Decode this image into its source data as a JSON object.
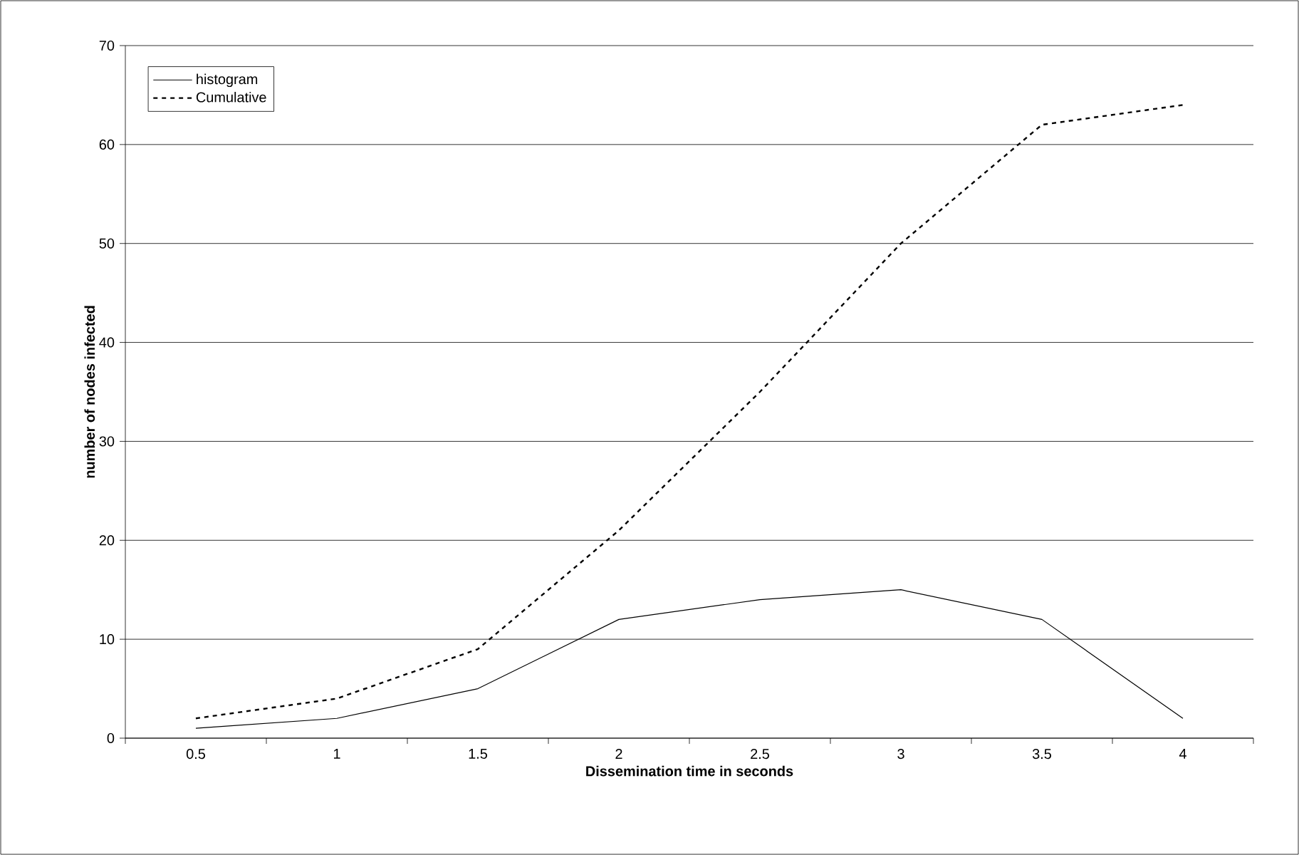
{
  "chart_data": {
    "type": "line",
    "xlabel": "Dissemination time in seconds",
    "ylabel": "number of nodes infected",
    "categories": [
      "0.5",
      "1",
      "1.5",
      "2",
      "2.5",
      "3",
      "3.5",
      "4"
    ],
    "series": [
      {
        "name": "histogram",
        "color": "#000000",
        "line_style": "solid",
        "values": [
          1,
          2,
          5,
          12,
          14,
          15,
          12,
          2
        ]
      },
      {
        "name": "Cumulative",
        "color": "#000000",
        "line_style": "dashed",
        "values": [
          2,
          4,
          9,
          21,
          35,
          50,
          62,
          64
        ]
      }
    ],
    "ylim": [
      0,
      70
    ],
    "yticks": [
      0,
      10,
      20,
      30,
      40,
      50,
      60,
      70
    ],
    "grid": "y",
    "legend": "top left"
  }
}
